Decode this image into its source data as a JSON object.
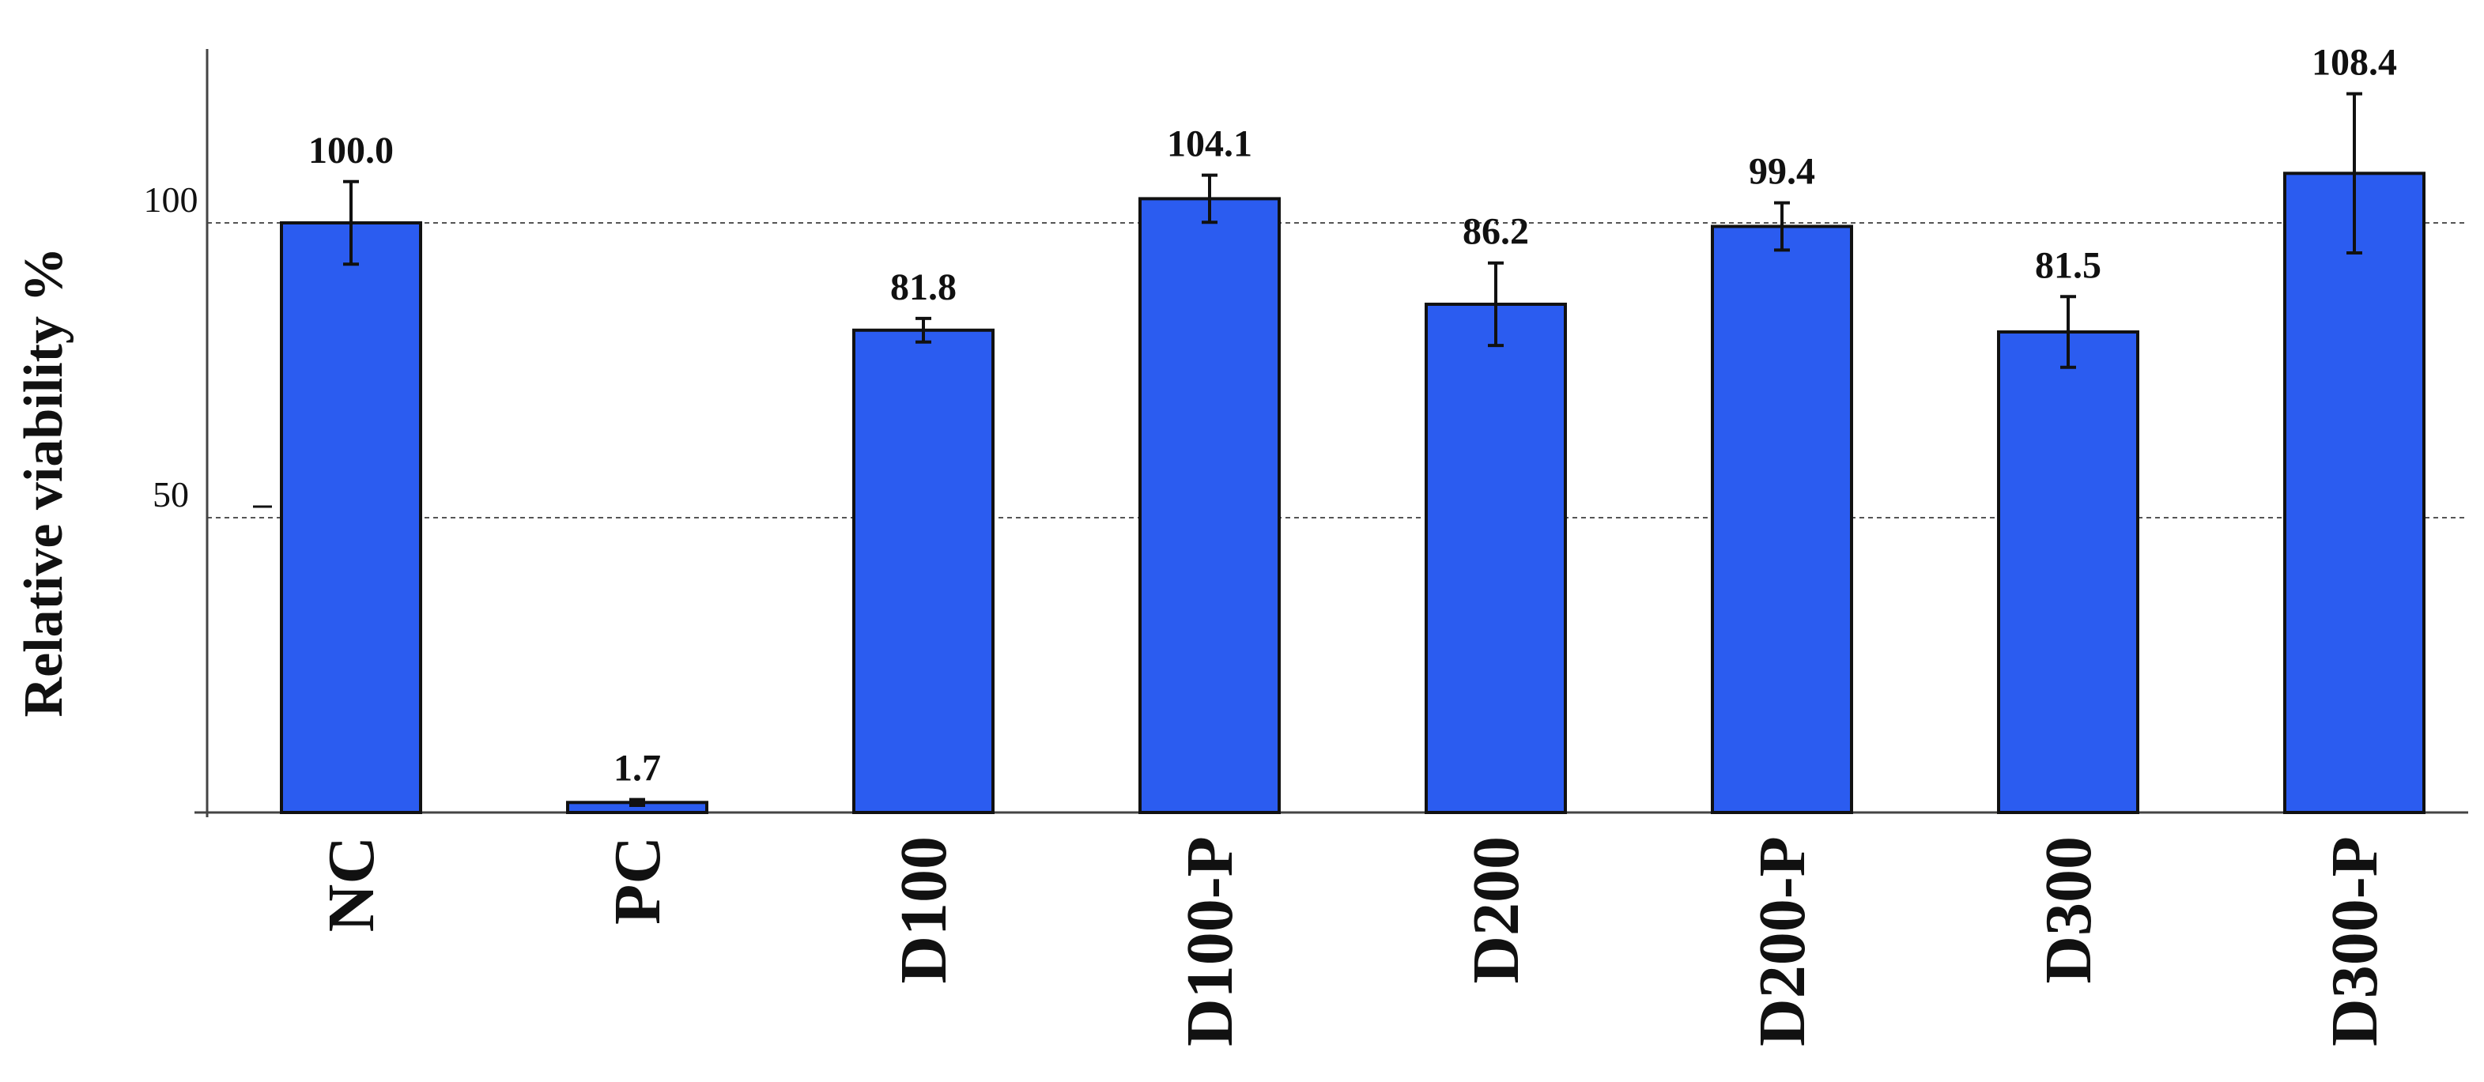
{
  "chart_data": {
    "type": "bar",
    "title": "",
    "xlabel": "",
    "ylabel": "Relative viability %",
    "categories": [
      "NC",
      "PC",
      "D100",
      "D100-P",
      "D200",
      "D200-P",
      "D300",
      "D300-P"
    ],
    "series": [
      {
        "values": [
          100.0,
          1.7,
          81.8,
          104.1,
          86.2,
          99.4,
          81.5,
          108.4
        ],
        "errors": [
          7,
          0.5,
          2,
          4,
          7,
          4,
          6,
          13.5
        ],
        "data_labels": [
          "100.0",
          "1.7",
          "81.8",
          "104.1",
          "86.2",
          "99.4",
          "81.5",
          "108.4"
        ],
        "color": "#2b5cf0"
      }
    ],
    "ylim": [
      0,
      130
    ],
    "yticks": [
      50,
      100
    ],
    "ytick_labels": [
      "50",
      "100"
    ],
    "grid": "horizontal dotted at 50 and 100",
    "bar_edge_color": "#111111",
    "legend": "none"
  }
}
